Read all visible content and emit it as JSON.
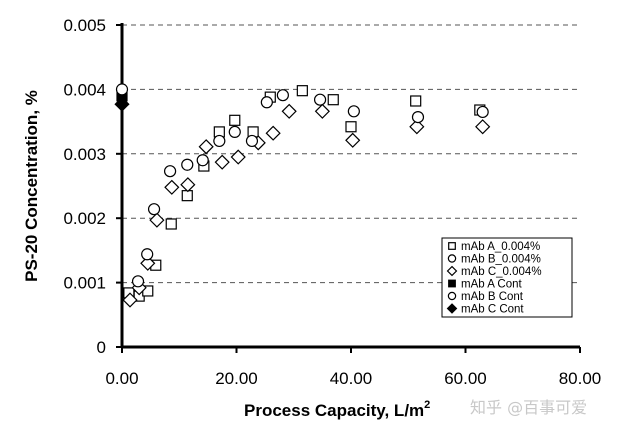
{
  "chart_data": {
    "type": "scatter",
    "title": "",
    "xlabel": "Process Capacity, L/m",
    "xlabel_superscript": "2",
    "ylabel": "PS-20 Concentration, %",
    "xlim": [
      0,
      80
    ],
    "ylim": [
      0,
      0.005
    ],
    "x_ticks": [
      "0.00",
      "20.00",
      "40.00",
      "60.00",
      "80.00"
    ],
    "x_tick_values": [
      0,
      20,
      40,
      60,
      80
    ],
    "y_ticks": [
      "0",
      "0.001",
      "0.002",
      "0.003",
      "0.004",
      "0.005"
    ],
    "y_tick_values": [
      0,
      0.001,
      0.002,
      0.003,
      0.004,
      0.005
    ],
    "grid": "horizontal dashed",
    "legend_position": "bottom-right",
    "series": [
      {
        "name": "mAb A_0.004%",
        "marker": "square-open",
        "x": [
          1.2,
          3.0,
          4.5,
          5.9,
          8.6,
          11.4,
          14.3,
          17.0,
          19.7,
          22.9,
          25.9,
          31.5,
          36.9,
          40.0,
          51.3,
          62.5
        ],
        "y": [
          0.00084,
          0.00079,
          0.00087,
          0.00127,
          0.00191,
          0.00235,
          0.00281,
          0.00334,
          0.00352,
          0.00334,
          0.00388,
          0.00398,
          0.00384,
          0.00342,
          0.00382,
          0.00368
        ]
      },
      {
        "name": "mAb B_0.004%",
        "marker": "circle-open",
        "x": [
          2.8,
          4.4,
          5.6,
          8.4,
          11.4,
          14.1,
          17.0,
          19.7,
          22.7,
          25.3,
          28.1,
          34.6,
          40.5,
          51.7,
          63.0
        ],
        "y": [
          0.00102,
          0.00144,
          0.00214,
          0.00273,
          0.00283,
          0.0029,
          0.0032,
          0.00334,
          0.0032,
          0.0038,
          0.00391,
          0.00384,
          0.00366,
          0.00357,
          0.00365
        ]
      },
      {
        "name": "mAb C_0.004%",
        "marker": "diamond-open",
        "x": [
          1.4,
          3.0,
          4.5,
          6.1,
          8.7,
          11.5,
          14.7,
          17.5,
          20.3,
          23.8,
          26.4,
          29.2,
          35.0,
          40.3,
          51.5,
          63.0
        ],
        "y": [
          0.00073,
          0.00092,
          0.0013,
          0.00197,
          0.00248,
          0.00252,
          0.00311,
          0.00287,
          0.00295,
          0.00317,
          0.00332,
          0.00366,
          0.00366,
          0.00321,
          0.00342,
          0.00342
        ]
      },
      {
        "name": "mAb A Cont",
        "marker": "square-filled",
        "x": [
          0
        ],
        "y": [
          0.0039
        ]
      },
      {
        "name": "mAb B Cont",
        "marker": "circle-open",
        "x": [
          0
        ],
        "y": [
          0.004
        ]
      },
      {
        "name": "mAb C Cont",
        "marker": "diamond-filled",
        "x": [
          0
        ],
        "y": [
          0.00377
        ]
      }
    ]
  },
  "watermark": "知乎 @百事可爱"
}
